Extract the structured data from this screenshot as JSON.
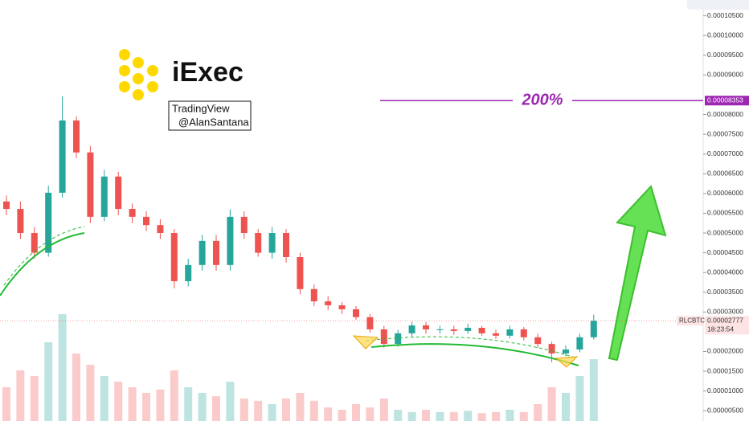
{
  "chart_data": {
    "type": "candlestick",
    "logo_text": "iExec",
    "credit": [
      "TradingView",
      "@AlanSantana"
    ],
    "annotation": "200%",
    "target": {
      "value": 8.353e-05,
      "label": "0.00008353"
    },
    "high": [
      5.95e-05,
      5.8e-05,
      5.15e-05,
      6.2e-05,
      8.459e-05,
      7.95e-05,
      7.2e-05,
      6.6e-05,
      6.55e-05,
      5.75e-05,
      5.55e-05,
      5.35e-05,
      5.1e-05,
      4.35e-05,
      4.95e-05,
      4.95e-05,
      5.6e-05,
      5.55e-05,
      5.1e-05,
      5.15e-05,
      5.1e-05,
      4.5e-05,
      3.7e-05,
      3.4e-05,
      3.25e-05,
      3.15e-05,
      2.95e-05,
      2.65e-05,
      2.55e-05,
      2.75e-05,
      2.75e-05,
      2.65e-05,
      2.65e-05,
      2.7e-05,
      2.65e-05,
      2.55e-05,
      2.65e-05,
      2.62e-05,
      2.45e-05,
      2.25e-05,
      2.15e-05,
      2.45e-05,
      2.93e-05
    ],
    "low": [
      5.45e-05,
      4.85e-05,
      4.35e-05,
      4.4e-05,
      5.9e-05,
      6.9e-05,
      5.25e-05,
      5.3e-05,
      5.45e-05,
      5.25e-05,
      5.05e-05,
      4.85e-05,
      3.6e-05,
      3.65e-05,
      4.05e-05,
      4.05e-05,
      4.05e-05,
      4.85e-05,
      4.4e-05,
      4.35e-05,
      4.25e-05,
      3.45e-05,
      3.15e-05,
      3.05e-05,
      2.95e-05,
      2.8e-05,
      2.48e-05,
      2.1e-05,
      2.12e-05,
      2.38e-05,
      2.45e-05,
      2.45e-05,
      2.42e-05,
      2.45e-05,
      2.4e-05,
      2.32e-05,
      2.33e-05,
      2.28e-05,
      2.1e-05,
      1.725e-05,
      1.88e-05,
      1.98e-05,
      2.3e-05
    ],
    "last": {
      "name": "RLCBTC",
      "value": 2.777e-05,
      "label": "0.00002777",
      "time": "18:23:54"
    },
    "open": [
      5.8e-05,
      5.61e-05,
      5e-05,
      4.5e-05,
      6.02e-05,
      7.85e-05,
      7.04e-05,
      5.41e-05,
      6.43e-05,
      5.61e-05,
      5.41e-05,
      5.2e-05,
      5e-05,
      3.78e-05,
      4.19e-05,
      4.8e-05,
      4.19e-05,
      5.41e-05,
      5e-05,
      4.5e-05,
      5e-05,
      4.39e-05,
      3.58e-05,
      3.27e-05,
      3.17e-05,
      3.07e-05,
      2.87e-05,
      2.56e-05,
      2.19e-05,
      2.46e-05,
      2.66e-05,
      2.56e-05,
      2.56e-05,
      2.52e-05,
      2.6e-05,
      2.46e-05,
      2.4e-05,
      2.56e-05,
      2.36e-05,
      2.19e-05,
      1.95e-05,
      2.05e-05,
      2.36e-05
    ],
    "close": [
      5.61e-05,
      5e-05,
      4.5e-05,
      6.02e-05,
      7.85e-05,
      7.04e-05,
      5.41e-05,
      6.43e-05,
      5.61e-05,
      5.41e-05,
      5.2e-05,
      5e-05,
      3.78e-05,
      4.19e-05,
      4.8e-05,
      4.19e-05,
      5.41e-05,
      5e-05,
      4.5e-05,
      5e-05,
      4.39e-05,
      3.58e-05,
      3.27e-05,
      3.17e-05,
      3.07e-05,
      2.87e-05,
      2.56e-05,
      2.19e-05,
      2.46e-05,
      2.66e-05,
      2.56e-05,
      2.56e-05,
      2.52e-05,
      2.6e-05,
      2.46e-05,
      2.4e-05,
      2.56e-05,
      2.36e-05,
      2.19e-05,
      1.95e-05,
      2.05e-05,
      2.36e-05,
      2.777e-05
    ],
    "volume": [
      30,
      45,
      40,
      70,
      95,
      60,
      50,
      40,
      35,
      30,
      25,
      28,
      45,
      30,
      25,
      22,
      35,
      20,
      18,
      15,
      20,
      25,
      18,
      12,
      10,
      15,
      12,
      20,
      10,
      8,
      10,
      8,
      8,
      9,
      7,
      8,
      10,
      8,
      15,
      30,
      25,
      40,
      55
    ],
    "volume_ylim": [
      0,
      100
    ],
    "up_color": "#26a69a",
    "down_color": "#ef5350",
    "ylim": [
      2.4e-06,
      0.000109
    ],
    "yticks": [
      {
        "value": 0.000105,
        "label": "0.00010500"
      },
      {
        "value": 0.0001,
        "label": "0.00010000"
      },
      {
        "value": 9.5e-05,
        "label": "0.00009500"
      },
      {
        "value": 9e-05,
        "label": "0.00009000"
      },
      {
        "value": 8e-05,
        "label": "0.00008000"
      },
      {
        "value": 7.5e-05,
        "label": "0.00007500"
      },
      {
        "value": 7e-05,
        "label": "0.00007000"
      },
      {
        "value": 6.5e-05,
        "label": "0.00006500"
      },
      {
        "value": 6e-05,
        "label": "0.00006000"
      },
      {
        "value": 5.5e-05,
        "label": "0.00005500"
      },
      {
        "value": 5e-05,
        "label": "0.00005000"
      },
      {
        "value": 4.5e-05,
        "label": "0.00004500"
      },
      {
        "value": 4e-05,
        "label": "0.00004000"
      },
      {
        "value": 3.5e-05,
        "label": "0.00003500"
      },
      {
        "value": 3e-05,
        "label": "0.00003000"
      },
      {
        "value": 2e-05,
        "label": "0.00002000"
      },
      {
        "value": 1.5e-05,
        "label": "0.00001500"
      },
      {
        "value": 1e-05,
        "label": "0.00001000"
      },
      {
        "value": 5e-06,
        "label": "0.00000500"
      }
    ]
  }
}
